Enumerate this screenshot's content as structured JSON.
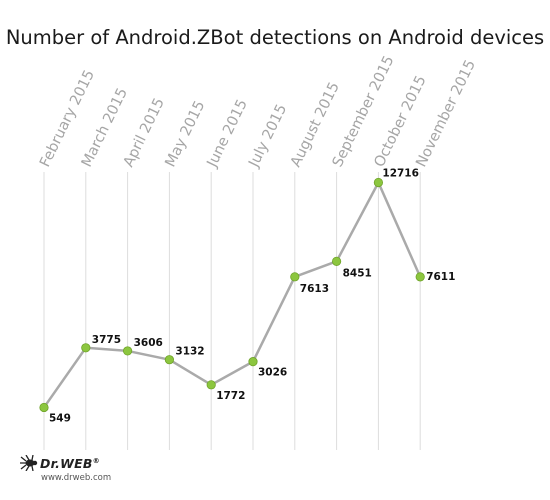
{
  "chart_data": {
    "type": "line",
    "title": "Number of Android.ZBot detections on Android devices",
    "categories": [
      "February 2015",
      "March 2015",
      "April 2015",
      "May 2015",
      "June 2015",
      "July 2015",
      "August 2015",
      "September 2015",
      "October 2015",
      "November 2015"
    ],
    "series": [
      {
        "values": [
          549,
          3775,
          3606,
          3132,
          1772,
          3026,
          7613,
          8451,
          12716,
          7611
        ]
      }
    ],
    "grid": true,
    "colors": {
      "line": "#aaaaaa",
      "marker": "#8cc63f",
      "marker_stroke": "#6fa32a",
      "gridline": "#dddddd",
      "tick_text": "#a6a6a6"
    }
  },
  "brand": {
    "name": "Dr.WEB",
    "registered": "®",
    "url": "www.drweb.com"
  }
}
